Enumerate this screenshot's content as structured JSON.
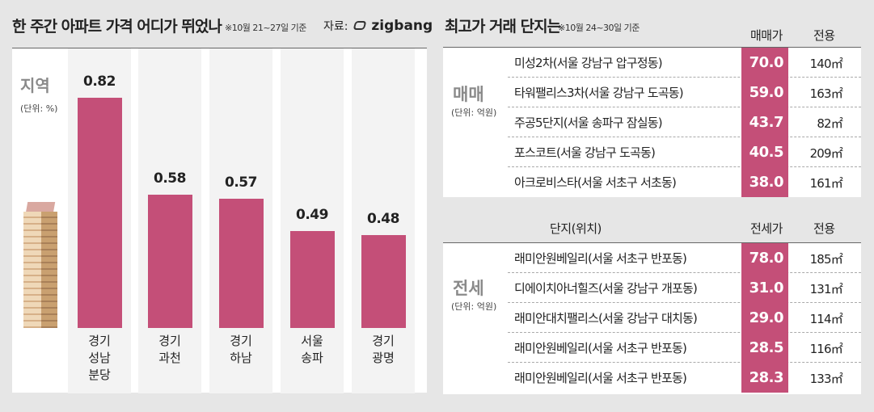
{
  "left": {
    "title": "한 주간 아파트 가격 어디가 뛰었나",
    "note": "※10월 21~27일 기준",
    "source_label": "자료:",
    "source_logo": "zigbang",
    "axis_title": "지역",
    "unit": "(단위: %)"
  },
  "chart_data": {
    "type": "bar",
    "categories": [
      "경기\n성남\n분당",
      "경기\n과천",
      "경기\n하남",
      "서울\n송파",
      "경기\n광명"
    ],
    "values": [
      0.82,
      0.58,
      0.57,
      0.49,
      0.48
    ],
    "value_labels": [
      "0.82",
      "0.58",
      "0.57",
      "0.49",
      "0.48"
    ],
    "xlabel": "지역",
    "ylabel": "(단위: %)",
    "bar_color": "#c44f78",
    "grid": false
  },
  "right": {
    "title": "최고가 거래 단지는",
    "note": "※10월 24~30일 기준",
    "sale": {
      "section": "매매",
      "unit": "(단위: 억원)",
      "price_header": "매매가",
      "area_header": "전용",
      "rows": [
        {
          "name": "미성2차(서울 강남구 압구정동)",
          "price": "70.0",
          "area": "140㎡"
        },
        {
          "name": "타워팰리스3차(서울 강남구 도곡동)",
          "price": "59.0",
          "area": "163㎡"
        },
        {
          "name": "주공5단지(서울 송파구 잠실동)",
          "price": "43.7",
          "area": "82㎡"
        },
        {
          "name": "포스코트(서울 강남구 도곡동)",
          "price": "40.5",
          "area": "209㎡"
        },
        {
          "name": "아크로비스타(서울 서초구 서초동)",
          "price": "38.0",
          "area": "161㎡"
        }
      ]
    },
    "jeonse": {
      "section": "전세",
      "unit": "(단위: 억원)",
      "name_header": "단지(위치)",
      "price_header": "전세가",
      "area_header": "전용",
      "rows": [
        {
          "name": "래미안원베일리(서울 서초구 반포동)",
          "price": "78.0",
          "area": "185㎡"
        },
        {
          "name": "디에이치아너힐즈(서울 강남구 개포동)",
          "price": "31.0",
          "area": "131㎡"
        },
        {
          "name": "래미안대치팰리스(서울 강남구 대치동)",
          "price": "29.0",
          "area": "114㎡"
        },
        {
          "name": "래미안원베일리(서울 서초구 반포동)",
          "price": "28.5",
          "area": "116㎡"
        },
        {
          "name": "래미안원베일리(서울 서초구 반포동)",
          "price": "28.3",
          "area": "133㎡"
        }
      ]
    }
  }
}
